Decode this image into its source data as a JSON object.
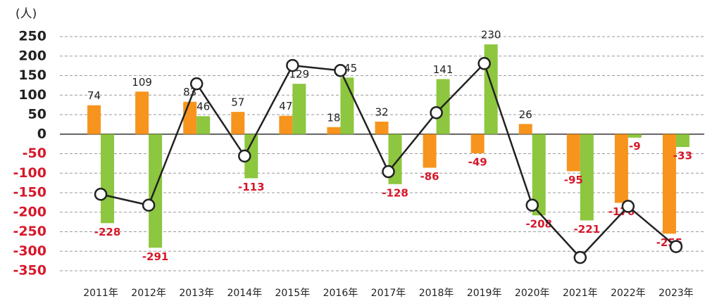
{
  "chart_data": {
    "type": "bar",
    "unit_label": "(人)",
    "categories": [
      "2011年",
      "2012年",
      "2013年",
      "2014年",
      "2015年",
      "2016年",
      "2017年",
      "2018年",
      "2019年",
      "2020年",
      "2021年",
      "2022年",
      "2023年"
    ],
    "series": [
      {
        "type": "bar",
        "color": "#f7941d",
        "values": [
          74,
          109,
          83,
          57,
          47,
          18,
          32,
          -86,
          -49,
          26,
          -95,
          -176,
          -255
        ]
      },
      {
        "type": "bar",
        "color": "#8dc63f",
        "values": [
          -228,
          -291,
          46,
          -113,
          129,
          145,
          -128,
          141,
          230,
          -208,
          -221,
          -9,
          -33
        ]
      },
      {
        "type": "line",
        "color": "#222222",
        "values": [
          -154,
          -182,
          129,
          -56,
          176,
          163,
          -96,
          55,
          181,
          -182,
          -316,
          -185,
          -288
        ]
      }
    ],
    "ylim": [
      -350,
      250
    ],
    "yticks": [
      -350,
      -300,
      -250,
      -200,
      -150,
      -100,
      -50,
      0,
      50,
      100,
      150,
      200,
      250
    ],
    "grid": true,
    "negative_color": "#d7182a"
  }
}
